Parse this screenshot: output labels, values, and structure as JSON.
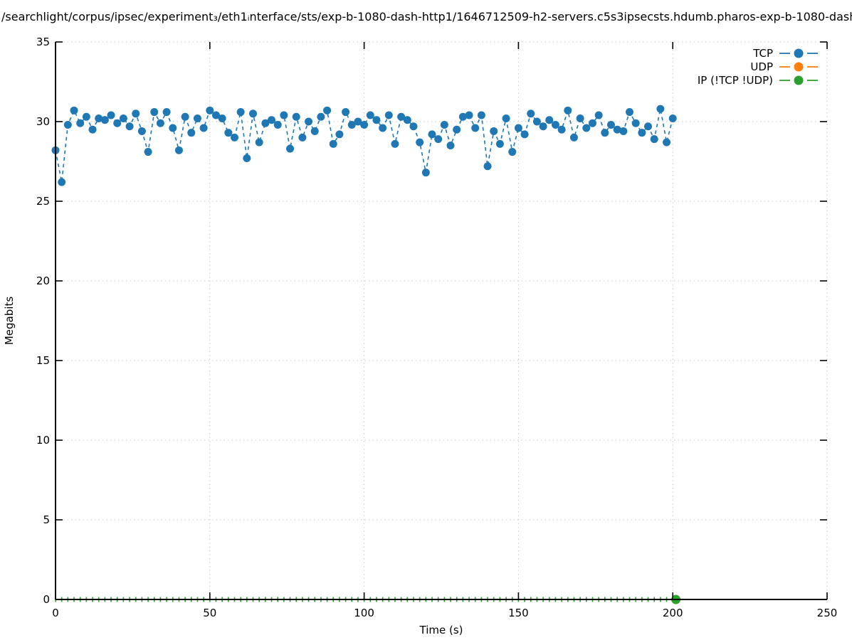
{
  "chart_data": {
    "type": "line",
    "title": "/searchlight/corpus/ipsec/experiment₃/eth1ᵢnterface/sts/exp-b-1080-dash-http1/1646712509-h2-servers.c5s3ipsecsts.hdumb.pharos-exp-b-1080-dash",
    "xlabel": "Time (s)",
    "ylabel": "Megabits",
    "xlim": [
      0,
      250
    ],
    "ylim": [
      0,
      35
    ],
    "xticks": [
      "0",
      "50",
      "100",
      "150",
      "200",
      "250"
    ],
    "yticks": [
      "0",
      "5",
      "10",
      "15",
      "20",
      "25",
      "30",
      "35"
    ],
    "grid": "dotted",
    "grid_color": "#c6c6c6",
    "legend_position": "top-right",
    "marker": "filled-circle",
    "line_style": "dashed",
    "series": [
      {
        "name": "TCP",
        "color": "#1f77b4",
        "x_start": 0,
        "x_step": 2,
        "values": [
          28.2,
          26.2,
          29.8,
          30.7,
          29.9,
          30.3,
          29.5,
          30.2,
          30.1,
          30.4,
          29.9,
          30.2,
          29.7,
          30.5,
          29.4,
          28.1,
          30.6,
          29.9,
          30.6,
          29.6,
          28.2,
          30.3,
          29.3,
          30.2,
          29.6,
          30.7,
          30.4,
          30.2,
          29.3,
          29.0,
          30.6,
          27.7,
          30.5,
          28.7,
          29.9,
          30.1,
          29.8,
          30.4,
          28.3,
          30.3,
          29.0,
          30.0,
          29.4,
          30.3,
          30.7,
          28.6,
          29.2,
          30.6,
          29.8,
          30.0,
          29.8,
          30.4,
          30.1,
          29.6,
          30.4,
          28.6,
          30.3,
          30.1,
          29.7,
          28.7,
          26.8,
          29.2,
          28.9,
          29.8,
          28.5,
          29.5,
          30.3,
          30.4,
          29.6,
          30.4,
          27.2,
          29.4,
          28.6,
          30.2,
          28.1,
          29.6,
          29.2,
          30.5,
          30.0,
          29.7,
          30.1,
          29.8,
          29.5,
          30.7,
          29.0,
          30.2,
          29.6,
          29.9,
          30.4,
          29.3,
          29.8,
          29.5,
          29.4,
          30.6,
          29.9,
          29.3,
          29.7,
          28.9,
          30.8,
          28.7,
          30.2
        ]
      },
      {
        "name": "UDP",
        "color": "#ff7f0e",
        "x_start": 0,
        "x_step": 2,
        "values": []
      },
      {
        "name": "IP (!TCP  !UDP)",
        "color": "#2ca02c",
        "x_start": 0,
        "x_step": 2,
        "x_end": 201,
        "constant_value": 0,
        "end_marker_x": 201,
        "end_marker_y": 0
      }
    ]
  }
}
